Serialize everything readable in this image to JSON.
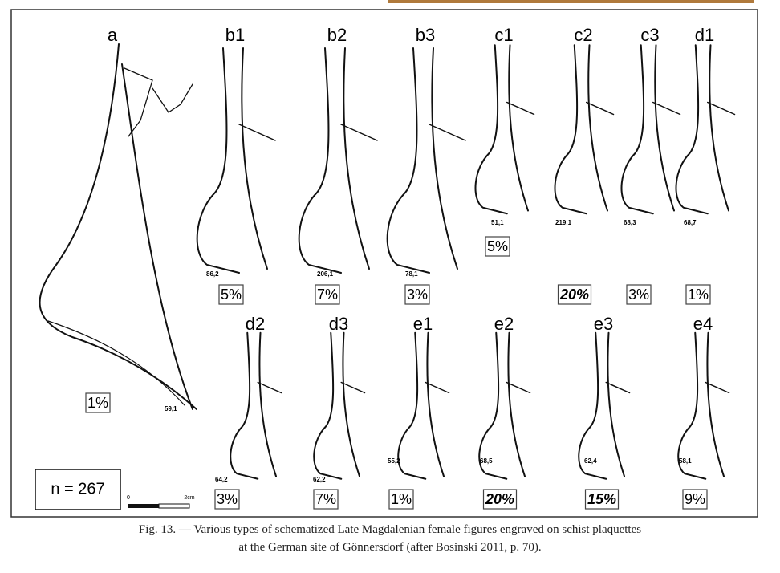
{
  "figure": {
    "panels": [
      {
        "label": "a",
        "id": "59,1",
        "percent": "1%",
        "emphasized": false
      },
      {
        "label": "b1",
        "id": "86,2",
        "percent": "5%",
        "emphasized": false
      },
      {
        "label": "b2",
        "id": "206,1",
        "percent": "7%",
        "emphasized": false
      },
      {
        "label": "b3",
        "id": "78,1",
        "percent": "3%",
        "emphasized": false
      },
      {
        "label": "c1",
        "id": "51,1",
        "percent": "5%",
        "emphasized": false
      },
      {
        "label": "c2",
        "id": "219,1",
        "percent": "20%",
        "emphasized": true
      },
      {
        "label": "c3",
        "id": "68,3",
        "percent": "3%",
        "emphasized": false
      },
      {
        "label": "d1",
        "id": "68,7",
        "percent": "1%",
        "emphasized": false
      },
      {
        "label": "d2",
        "id": "64,2",
        "percent": "3%",
        "emphasized": false
      },
      {
        "label": "d3",
        "id": "62,2",
        "percent": "7%",
        "emphasized": false
      },
      {
        "label": "e1",
        "id": "55,2",
        "percent": "1%",
        "emphasized": false
      },
      {
        "label": "e2",
        "id": "68,5",
        "percent": "20%",
        "emphasized": true
      },
      {
        "label": "e3",
        "id": "62,4",
        "percent": "15%",
        "emphasized": true
      },
      {
        "label": "e4",
        "id": "58,1",
        "percent": "9%",
        "emphasized": false
      }
    ],
    "sample_size": "n = 267",
    "scale_start": "0",
    "scale_end": "2cm"
  },
  "caption": {
    "line1": "Fig. 13. — Various types of schematized Late Magdalenian female figures engraved on schist plaquettes",
    "line2": "at the German site of Gönnersdorf (after Bosinski 2011, p. 70)."
  }
}
